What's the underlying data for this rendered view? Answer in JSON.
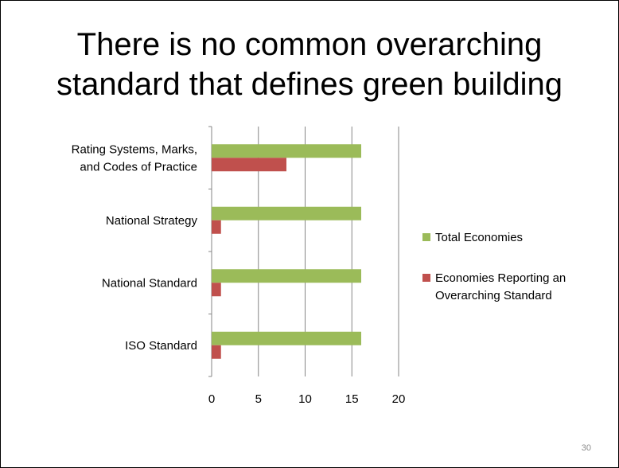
{
  "slide": {
    "title_lines": [
      "There is no common overarching",
      "standard that defines green building"
    ],
    "page_number": "30"
  },
  "chart_data": {
    "type": "bar",
    "orientation": "horizontal",
    "categories": [
      "Rating Systems, Marks, and Codes of Practice",
      "National Strategy",
      "National Standard",
      "ISO Standard"
    ],
    "category_label_lines": [
      [
        "Rating Systems, Marks,",
        "and Codes of Practice"
      ],
      [
        "National Strategy"
      ],
      [
        "National Standard"
      ],
      [
        "ISO Standard"
      ]
    ],
    "series": [
      {
        "name": "Total Economies",
        "values": [
          16,
          16,
          16,
          16
        ],
        "color": "#9bbb59"
      },
      {
        "name": "Economies Reporting an Overarching Standard",
        "values": [
          8,
          1,
          1,
          1
        ],
        "color": "#c0504d"
      }
    ],
    "legend_lines": [
      [
        "Total Economies"
      ],
      [
        "Economies Reporting an",
        "Overarching Standard"
      ]
    ],
    "xlim": [
      0,
      20
    ],
    "xticks": [
      0,
      5,
      10,
      15,
      20
    ],
    "grid": "vertical",
    "legend": "right"
  }
}
